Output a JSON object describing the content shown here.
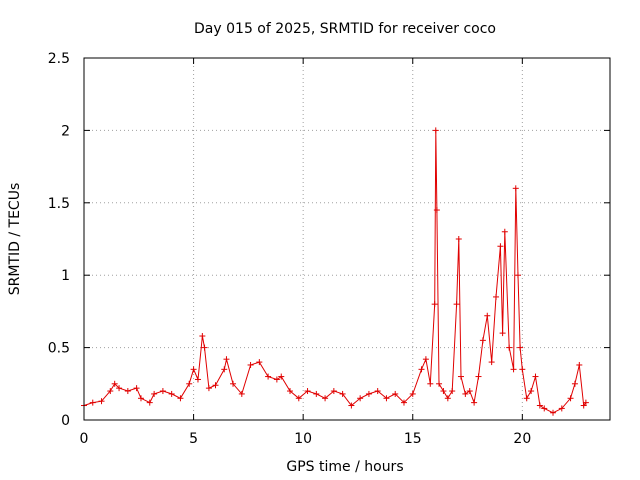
{
  "chart_data": {
    "type": "scatter",
    "title": "Day 015 of 2025, SRMTID for receiver coco",
    "xlabel": "GPS time / hours",
    "ylabel": "SRMTID / TECUs",
    "xlim": [
      0,
      24
    ],
    "ylim": [
      0,
      2.5
    ],
    "xticks": [
      0,
      5,
      10,
      15,
      20
    ],
    "yticks": [
      0,
      0.5,
      1,
      1.5,
      2,
      2.5
    ],
    "xtick_labels": [
      "0",
      "5",
      "10",
      "15",
      "20"
    ],
    "ytick_labels": [
      "0",
      "0.5",
      "1",
      "1.5",
      "2",
      "2.5"
    ],
    "grid": true,
    "marker": "+",
    "color": "#e00000",
    "series": [
      {
        "name": "SRMTID",
        "x": [
          0.0,
          0.4,
          0.8,
          1.2,
          1.4,
          1.6,
          2.0,
          2.4,
          2.6,
          3.0,
          3.2,
          3.6,
          4.0,
          4.4,
          4.8,
          5.0,
          5.2,
          5.4,
          5.5,
          5.7,
          6.0,
          6.4,
          6.5,
          6.8,
          7.2,
          7.6,
          8.0,
          8.4,
          8.8,
          9.0,
          9.4,
          9.8,
          10.2,
          10.6,
          11.0,
          11.4,
          11.8,
          12.2,
          12.6,
          13.0,
          13.4,
          13.8,
          14.2,
          14.6,
          15.0,
          15.4,
          15.6,
          15.8,
          16.0,
          16.05,
          16.1,
          16.2,
          16.4,
          16.6,
          16.8,
          17.0,
          17.1,
          17.2,
          17.4,
          17.6,
          17.8,
          18.0,
          18.2,
          18.4,
          18.6,
          18.8,
          19.0,
          19.1,
          19.2,
          19.4,
          19.6,
          19.7,
          19.8,
          19.9,
          20.0,
          20.2,
          20.4,
          20.6,
          20.8,
          21.0,
          21.4,
          21.8,
          22.2,
          22.4,
          22.6,
          22.8,
          22.9
        ],
        "y": [
          0.1,
          0.12,
          0.13,
          0.2,
          0.25,
          0.22,
          0.2,
          0.22,
          0.15,
          0.12,
          0.18,
          0.2,
          0.18,
          0.15,
          0.25,
          0.35,
          0.28,
          0.58,
          0.5,
          0.22,
          0.24,
          0.35,
          0.42,
          0.25,
          0.18,
          0.38,
          0.4,
          0.3,
          0.28,
          0.3,
          0.2,
          0.15,
          0.2,
          0.18,
          0.15,
          0.2,
          0.18,
          0.1,
          0.15,
          0.18,
          0.2,
          0.15,
          0.18,
          0.12,
          0.18,
          0.35,
          0.42,
          0.25,
          0.8,
          2.0,
          1.45,
          0.25,
          0.2,
          0.15,
          0.2,
          0.8,
          1.25,
          0.3,
          0.18,
          0.2,
          0.12,
          0.3,
          0.55,
          0.72,
          0.4,
          0.85,
          1.2,
          0.6,
          1.3,
          0.5,
          0.35,
          1.6,
          1.0,
          0.5,
          0.35,
          0.15,
          0.2,
          0.3,
          0.1,
          0.08,
          0.05,
          0.08,
          0.15,
          0.25,
          0.38,
          0.1,
          0.12
        ]
      }
    ]
  }
}
